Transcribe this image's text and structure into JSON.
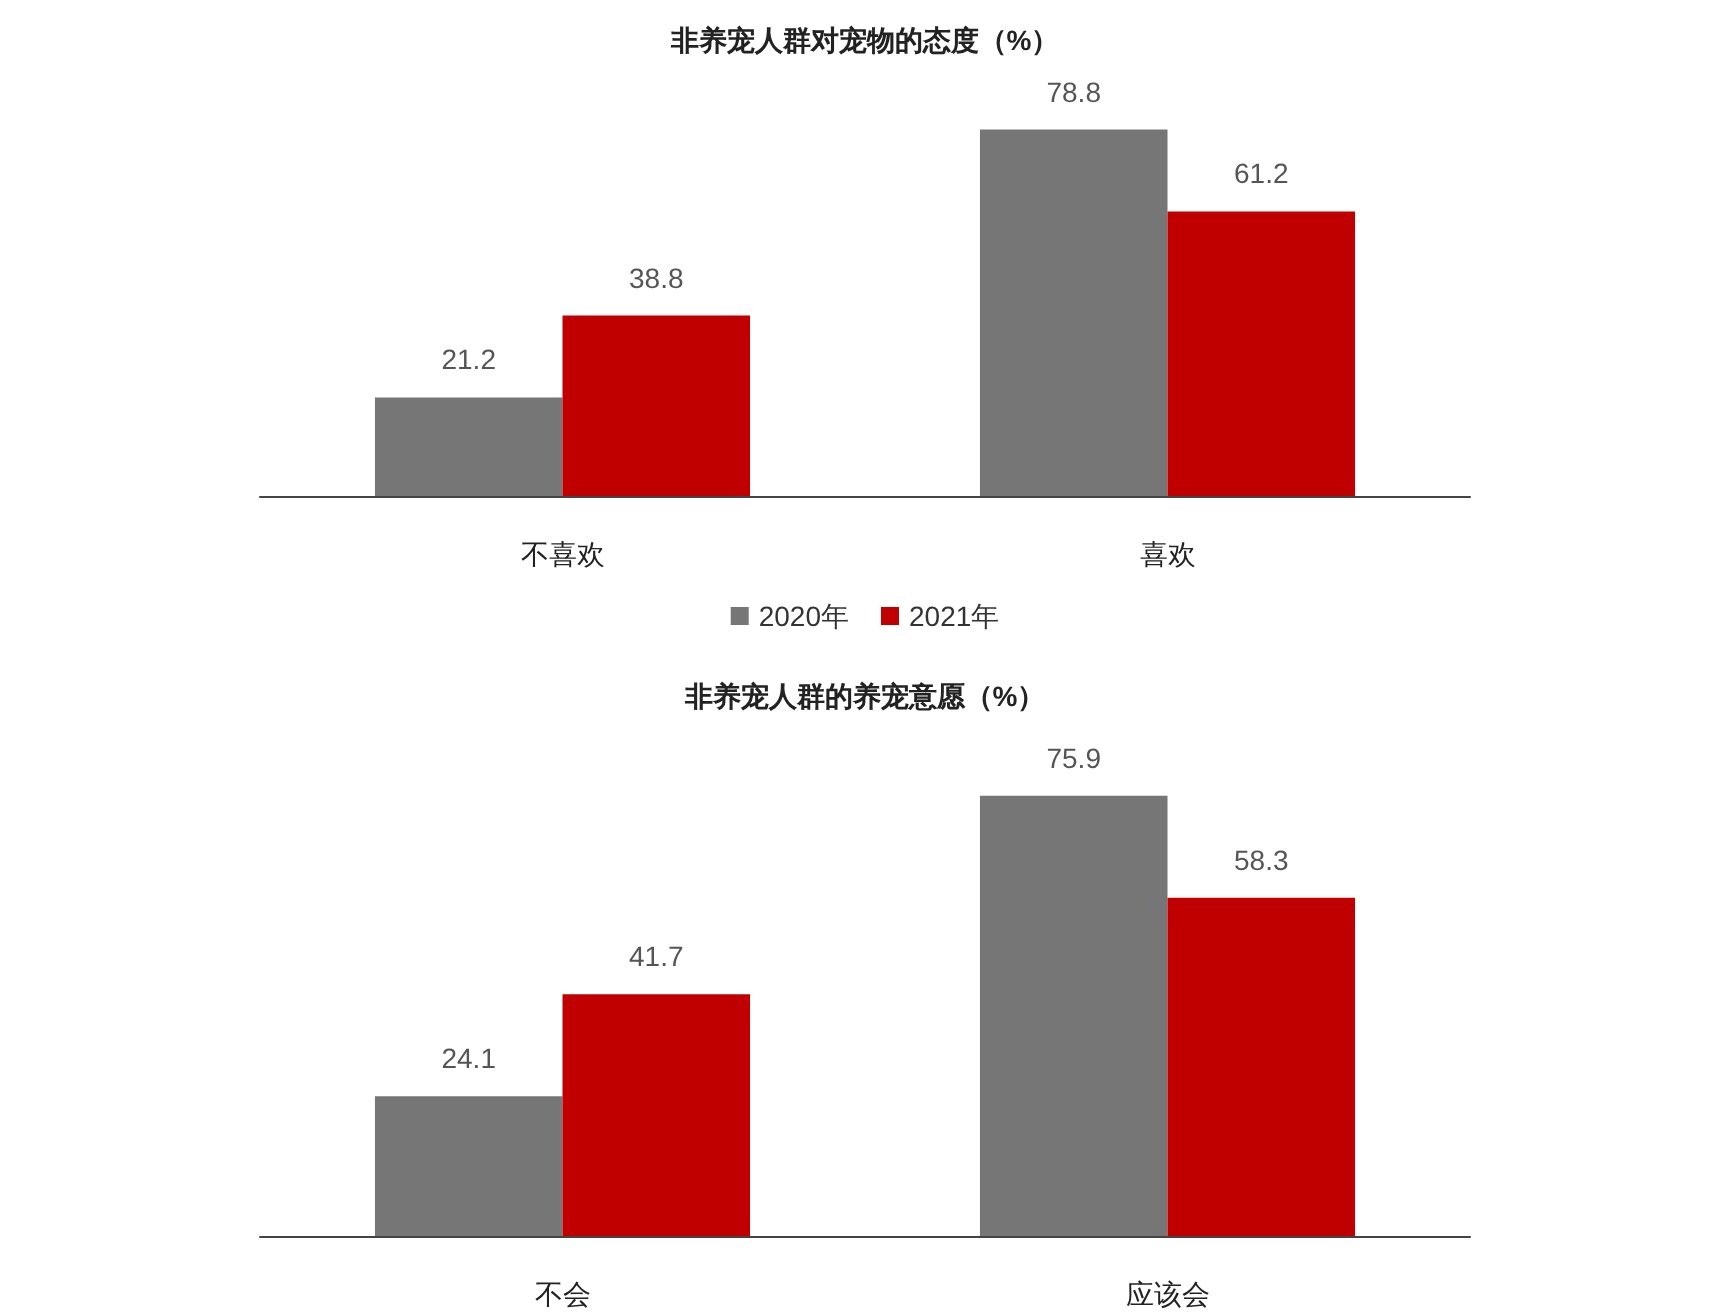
{
  "chart_data": [
    {
      "type": "bar",
      "title": "非养宠人群对宠物的态度（%）",
      "categories": [
        "不喜欢",
        "喜欢"
      ],
      "series": [
        {
          "name": "2020年",
          "color": "#767676",
          "values": [
            21.2,
            78.8
          ]
        },
        {
          "name": "2021年",
          "color": "#c00000",
          "values": [
            38.8,
            61.2
          ]
        }
      ],
      "data_labels": true,
      "legend": "bottom",
      "grid": false
    },
    {
      "type": "bar",
      "title": "非养宠人群的养宠意愿（%）",
      "categories": [
        "不会",
        "应该会"
      ],
      "series": [
        {
          "color": "#767676",
          "values": [
            24.1,
            75.9
          ]
        },
        {
          "color": "#c00000",
          "values": [
            41.7,
            58.3
          ]
        }
      ],
      "data_labels": true,
      "grid": false
    }
  ]
}
